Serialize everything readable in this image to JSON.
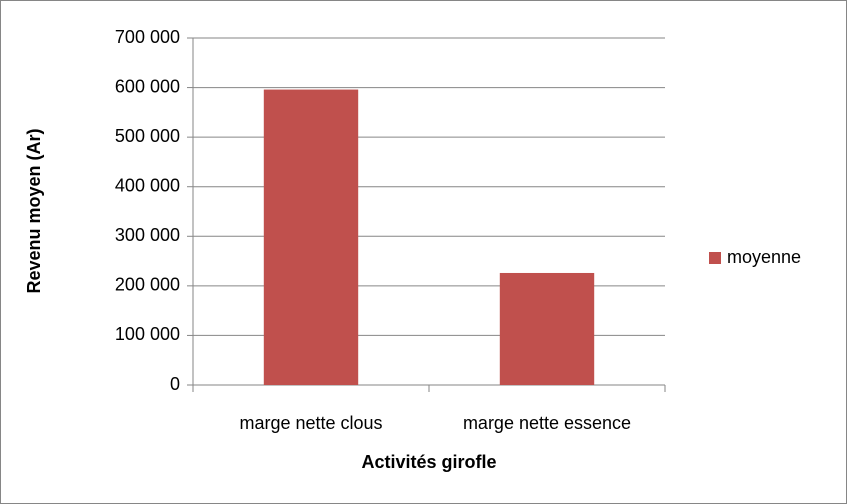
{
  "chart_data": {
    "type": "bar",
    "categories": [
      "marge nette clous",
      "marge nette essence"
    ],
    "series": [
      {
        "name": "moyenne",
        "color": "#c0504d",
        "values": [
          596000,
          226000
        ]
      }
    ],
    "y_label": "Revenu moyen (Ar)",
    "x_label": "Activités girofle",
    "ylim": [
      0,
      700000
    ],
    "yticks": [
      0,
      {
        "value": 100000,
        "label": "100 000"
      },
      {
        "value": 200000,
        "label": "200 000"
      },
      {
        "value": 300000,
        "label": "300 000"
      },
      {
        "value": 400000,
        "label": "400 000"
      },
      {
        "value": 500000,
        "label": "500 000"
      },
      {
        "value": 600000,
        "label": "600 000"
      },
      {
        "value": 700000,
        "label": "700 000"
      }
    ],
    "grid": true,
    "legend": "right"
  }
}
